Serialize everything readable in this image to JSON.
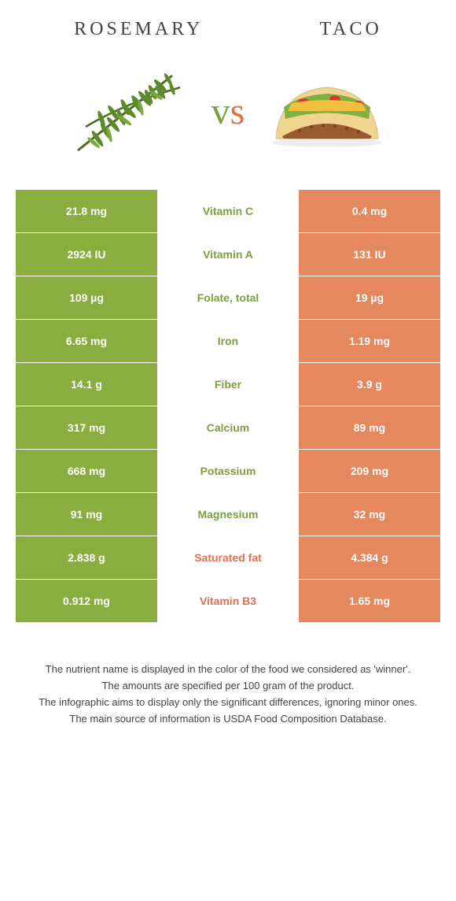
{
  "header": {
    "left_title": "Rosemary",
    "right_title": "Taco"
  },
  "vs": {
    "left_letter": "v",
    "right_letter": "s"
  },
  "colors": {
    "green": "#8aad3f",
    "orange": "#e6885e",
    "green_text": "#7f9e3f",
    "orange_text": "#e07050"
  },
  "rows": [
    {
      "left": "21.8 mg",
      "label": "Vitamin C",
      "right": "0.4 mg",
      "winner": "left"
    },
    {
      "left": "2924 IU",
      "label": "Vitamin A",
      "right": "131 IU",
      "winner": "left"
    },
    {
      "left": "109 µg",
      "label": "Folate, total",
      "right": "19 µg",
      "winner": "left"
    },
    {
      "left": "6.65 mg",
      "label": "Iron",
      "right": "1.19 mg",
      "winner": "left"
    },
    {
      "left": "14.1 g",
      "label": "Fiber",
      "right": "3.9 g",
      "winner": "left"
    },
    {
      "left": "317 mg",
      "label": "Calcium",
      "right": "89 mg",
      "winner": "left"
    },
    {
      "left": "668 mg",
      "label": "Potassium",
      "right": "209 mg",
      "winner": "left"
    },
    {
      "left": "91 mg",
      "label": "Magnesium",
      "right": "32 mg",
      "winner": "left"
    },
    {
      "left": "2.838 g",
      "label": "Saturated fat",
      "right": "4.384 g",
      "winner": "right"
    },
    {
      "left": "0.912 mg",
      "label": "Vitamin B3",
      "right": "1.65 mg",
      "winner": "right"
    }
  ],
  "footnote": {
    "line1": "The nutrient name is displayed in the color of the food we considered as 'winner'.",
    "line2": "The amounts are specified per 100 gram of the product.",
    "line3": "The infographic aims to display only the significant differences, ignoring minor ones.",
    "line4": "The main source of information is USDA Food Composition Database."
  }
}
